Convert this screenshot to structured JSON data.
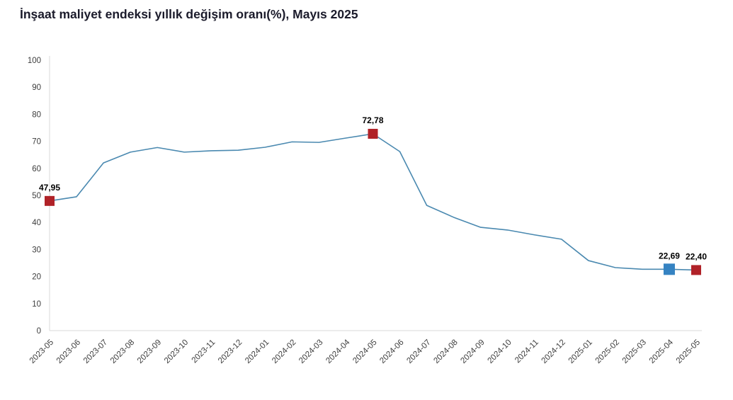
{
  "title": "İnşaat maliyet endeksi yıllık değişim oranı(%), Mayıs 2025",
  "colors": {
    "line": "#4a89b0",
    "marker_red": "#b02228",
    "marker_blue": "#3583c2",
    "axis": "#d9d9d9",
    "tick_text": "#3d3d3d",
    "value_text": "#000000",
    "title_text": "#1b1b2b"
  },
  "chart_data": {
    "type": "line",
    "title": "İnşaat maliyet endeksi yıllık değişim oranı(%), Mayıs 2025",
    "xlabel": "",
    "ylabel": "",
    "ylim": [
      0,
      100
    ],
    "ytick_step": 10,
    "grid": false,
    "legend": false,
    "categories": [
      "2023-05",
      "2023-06",
      "2023-07",
      "2023-08",
      "2023-09",
      "2023-10",
      "2023-11",
      "2023-12",
      "2024-01",
      "2024-02",
      "2024-03",
      "2024-04",
      "2024-05",
      "2024-06",
      "2024-07",
      "2024-08",
      "2024-09",
      "2024-10",
      "2024-11",
      "2024-12",
      "2025-01",
      "2025-02",
      "2025-03",
      "2025-04",
      "2025-05"
    ],
    "values": [
      47.95,
      49.5,
      62.0,
      66.0,
      67.7,
      66.0,
      66.5,
      66.7,
      67.8,
      69.8,
      69.6,
      71.2,
      72.78,
      66.2,
      46.3,
      41.9,
      38.2,
      37.2,
      35.4,
      33.8,
      25.9,
      23.3,
      22.7,
      22.69,
      22.4
    ],
    "annotations": [
      {
        "index": 0,
        "label": "47,95",
        "marker": "red"
      },
      {
        "index": 12,
        "label": "72,78",
        "marker": "red"
      },
      {
        "index": 23,
        "label": "22,69",
        "marker": "blue"
      },
      {
        "index": 24,
        "label": "22,40",
        "marker": "red"
      }
    ]
  }
}
